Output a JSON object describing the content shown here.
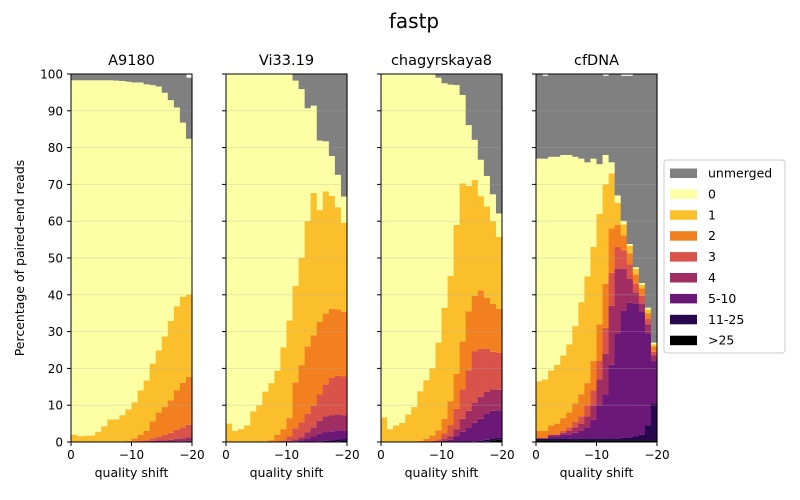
{
  "figure": {
    "title": "fastp",
    "ylabel": "Percentage of paired-end reads"
  },
  "colors": {
    "unmerged": "#808080",
    "0": "#fcffa4",
    "1": "#fbbf2c",
    "2": "#f2801f",
    "3": "#d9534a",
    "4": "#a12e62",
    "5-10": "#6b1879",
    "11-25": "#28074e",
    ">25": "#000000"
  },
  "legend": {
    "placement": "right",
    "entries": [
      "unmerged",
      "0",
      "1",
      "2",
      "3",
      "4",
      "5-10",
      "11-25",
      ">25"
    ]
  },
  "chart_data": [
    {
      "type": "area",
      "title": "A9180",
      "xlabel": "quality shift",
      "ylabel": "Percentage of paired-end reads",
      "xlim": [
        0,
        -20
      ],
      "ylim": [
        0,
        100
      ],
      "xticks": [
        "0",
        "−10",
        "−20"
      ],
      "yticks": [
        "0",
        "10",
        "20",
        "30",
        "40",
        "50",
        "60",
        "70",
        "80",
        "90",
        "100"
      ],
      "grid": true,
      "x": [
        0,
        -1,
        -2,
        -3,
        -4,
        -5,
        -6,
        -7,
        -8,
        -9,
        -10,
        -11,
        -12,
        -13,
        -14,
        -15,
        -16,
        -17,
        -18,
        -19,
        -20
      ],
      "series": [
        {
          "name": ">25",
          "values": [
            0,
            0,
            0,
            0,
            0,
            0,
            0,
            0,
            0,
            0,
            0,
            0,
            0,
            0,
            0,
            0,
            0,
            0,
            0,
            0,
            0
          ]
        },
        {
          "name": "11-25",
          "values": [
            0,
            0,
            0,
            0,
            0,
            0,
            0,
            0,
            0,
            0,
            0,
            0,
            0,
            0,
            0,
            0,
            0,
            0,
            0,
            0,
            0
          ]
        },
        {
          "name": "5-10",
          "values": [
            0,
            0,
            0,
            0,
            0,
            0,
            0,
            0,
            0,
            0,
            0,
            0,
            0,
            0,
            0,
            0,
            0,
            0.2,
            0.2,
            0.3,
            0.3
          ]
        },
        {
          "name": "4",
          "values": [
            0,
            0,
            0,
            0,
            0,
            0,
            0,
            0,
            0,
            0,
            0,
            0,
            0,
            0.3,
            0.4,
            0.5,
            0.6,
            0.7,
            0.8,
            1,
            1
          ]
        },
        {
          "name": "3",
          "values": [
            0,
            0,
            0,
            0,
            0,
            0,
            0,
            0,
            0,
            0,
            0.2,
            0.3,
            0.5,
            0.7,
            1,
            1.4,
            1.9,
            2.4,
            3,
            3.4,
            3.5
          ]
        },
        {
          "name": "2",
          "values": [
            0,
            0,
            0,
            0,
            0,
            0,
            0,
            0,
            0,
            0.3,
            0.8,
            1.7,
            2.5,
            4.6,
            6.6,
            7.6,
            8.8,
            10.7,
            12.1,
            13,
            13.5
          ]
        },
        {
          "name": "1",
          "values": [
            2,
            1.6,
            1.7,
            1.8,
            2.8,
            4.3,
            6.1,
            6.2,
            7.3,
            8.6,
            9.8,
            12,
            13.7,
            15.7,
            16.9,
            19.2,
            21.6,
            22.9,
            23.4,
            22.4,
            0
          ]
        },
        {
          "name": "0",
          "values": [
            96.3,
            96.7,
            96.6,
            96.5,
            95.5,
            94,
            92.2,
            92,
            90.8,
            89,
            86.9,
            83.7,
            80.5,
            75.7,
            71.7,
            66.2,
            60,
            54,
            47.3,
            42.3,
            0
          ]
        },
        {
          "name": "unmerged",
          "values": [
            1.7,
            1.7,
            1.7,
            1.7,
            1.7,
            1.7,
            1.7,
            1.8,
            1.9,
            2.1,
            2.3,
            2.3,
            2.8,
            3,
            3.4,
            5.1,
            7.1,
            9.1,
            13.2,
            16.6,
            0
          ]
        }
      ]
    },
    {
      "type": "area",
      "title": "Vi33.19",
      "xlabel": "quality shift",
      "xlim": [
        0,
        -20
      ],
      "ylim": [
        0,
        100
      ],
      "xticks": [
        "0",
        "−10",
        "−20"
      ],
      "grid": true,
      "x": [
        0,
        -1,
        -2,
        -3,
        -4,
        -5,
        -6,
        -7,
        -8,
        -9,
        -10,
        -11,
        -12,
        -13,
        -14,
        -15,
        -16,
        -17,
        -18,
        -19,
        -20
      ],
      "series": [
        {
          "name": ">25",
          "values": [
            0,
            0,
            0,
            0,
            0,
            0,
            0,
            0,
            0,
            0,
            0,
            0,
            0,
            0,
            0,
            0,
            0,
            0,
            0.2,
            0.3,
            0.3
          ]
        },
        {
          "name": "11-25",
          "values": [
            0,
            0,
            0,
            0,
            0,
            0,
            0,
            0,
            0,
            0,
            0,
            0,
            0,
            0,
            0,
            0.2,
            0.3,
            0.4,
            0.5,
            0.5,
            0.5
          ]
        },
        {
          "name": "5-10",
          "values": [
            0,
            0,
            0,
            0,
            0,
            0,
            0,
            0,
            0,
            0,
            0,
            0.2,
            0.5,
            1,
            1.5,
            2,
            2.4,
            2.5,
            2.5,
            2.3,
            2.2
          ]
        },
        {
          "name": "4",
          "values": [
            0,
            0,
            0,
            0,
            0,
            0,
            0,
            0,
            0,
            0,
            0.3,
            0.5,
            0.8,
            1.6,
            2.5,
            3.6,
            4.3,
            4.3,
            4.3,
            4.2,
            4
          ]
        },
        {
          "name": "3",
          "values": [
            0,
            0,
            0,
            0,
            0,
            0,
            0,
            0,
            0,
            0.5,
            1.2,
            3,
            4,
            5.1,
            5.8,
            7.1,
            8.6,
            10.2,
            10.5,
            10.5,
            10.5
          ]
        },
        {
          "name": "2",
          "values": [
            0,
            0,
            0,
            0,
            0,
            0,
            0.2,
            0.5,
            2,
            3,
            5,
            12.5,
            15.6,
            18.3,
            19.2,
            19.8,
            19.3,
            18.8,
            18,
            17.6,
            16.7
          ]
        },
        {
          "name": "1",
          "values": [
            5,
            3,
            3.5,
            4.5,
            8.3,
            10,
            13.5,
            15.5,
            17.4,
            22.2,
            26.5,
            26.2,
            29.2,
            34,
            38.7,
            30.3,
            33.2,
            30.7,
            27.8,
            24.2,
            25
          ]
        },
        {
          "name": "0",
          "values": [
            95,
            97,
            96.5,
            95.5,
            91.7,
            90,
            86.3,
            84,
            80.6,
            74.3,
            67,
            55.8,
            45.8,
            30.7,
            23.7,
            18.9,
            13.6,
            10.8,
            8.8,
            7.1,
            0
          ]
        },
        {
          "name": "unmerged",
          "values": [
            0,
            0,
            0,
            0,
            0,
            0,
            0,
            0,
            0,
            0,
            0,
            1.8,
            4.1,
            9.3,
            8.6,
            18.1,
            18.3,
            22.3,
            27.4,
            33.3,
            0
          ]
        }
      ]
    },
    {
      "type": "area",
      "title": "chagyrskaya8",
      "xlabel": "quality shift",
      "xlim": [
        0,
        -20
      ],
      "ylim": [
        0,
        100
      ],
      "xticks": [
        "0",
        "−10",
        "−20"
      ],
      "grid": true,
      "x": [
        0,
        -1,
        -2,
        -3,
        -4,
        -5,
        -6,
        -7,
        -8,
        -9,
        -10,
        -11,
        -12,
        -13,
        -14,
        -15,
        -16,
        -17,
        -18,
        -19,
        -20
      ],
      "series": [
        {
          "name": ">25",
          "values": [
            0,
            0,
            0,
            0,
            0,
            0,
            0,
            0,
            0,
            0,
            0,
            0,
            0,
            0,
            0,
            0,
            0,
            0.2,
            0.5,
            0.6,
            0.6
          ]
        },
        {
          "name": "11-25",
          "values": [
            0,
            0,
            0,
            0,
            0,
            0,
            0,
            0,
            0,
            0,
            0,
            0,
            0,
            0,
            0,
            0.2,
            0.3,
            0.4,
            0.5,
            0.5,
            0.5
          ]
        },
        {
          "name": "5-10",
          "values": [
            0,
            0,
            0,
            0,
            0,
            0,
            0,
            0,
            0,
            0,
            0.3,
            0.6,
            1.5,
            2.8,
            4,
            5,
            6,
            7,
            7.5,
            7.5,
            7.3
          ]
        },
        {
          "name": "4",
          "values": [
            0,
            0,
            0,
            0,
            0,
            0,
            0,
            0,
            0,
            0,
            0.5,
            1,
            2,
            3.5,
            4.5,
            5.5,
            6,
            6,
            5.8,
            5.6,
            5.3
          ]
        },
        {
          "name": "3",
          "values": [
            0,
            0,
            0,
            0,
            0,
            0,
            0,
            0,
            0.3,
            0.7,
            1.5,
            3,
            5.5,
            8,
            11,
            14,
            13,
            11.7,
            10.2,
            10,
            9
          ]
        },
        {
          "name": "2",
          "values": [
            0,
            0,
            0,
            0,
            0,
            0,
            0.3,
            0.9,
            1.5,
            2.5,
            4,
            6.5,
            9.5,
            13,
            16,
            15,
            15.9,
            13.9,
            13,
            12,
            11
          ]
        },
        {
          "name": "1",
          "values": [
            6.7,
            3.5,
            4.5,
            5.2,
            7.5,
            9.5,
            13.5,
            15.9,
            18.2,
            23.8,
            30.2,
            34,
            40.5,
            43,
            34.1,
            31.5,
            25.6,
            24.8,
            22.5,
            19.5,
            0
          ]
        },
        {
          "name": "0",
          "values": [
            93.3,
            96.5,
            95.5,
            94.8,
            92.5,
            90.5,
            86.2,
            83.2,
            80,
            72,
            61,
            52,
            38,
            24,
            16.5,
            10.9,
            9.9,
            8.3,
            7.3,
            6.4,
            0
          ]
        },
        {
          "name": "unmerged",
          "values": [
            0,
            0,
            0,
            0,
            0,
            0,
            0,
            0,
            0,
            1,
            2.5,
            2.9,
            3,
            5.7,
            13.9,
            17.9,
            23.3,
            27.7,
            32.7,
            37.9,
            0
          ]
        }
      ]
    },
    {
      "type": "area",
      "title": "cfDNA",
      "xlabel": "quality shift",
      "xlim": [
        0,
        -20
      ],
      "ylim": [
        0,
        100
      ],
      "xticks": [
        "0",
        "−10",
        "−20"
      ],
      "grid": true,
      "x": [
        0,
        -1,
        -2,
        -3,
        -4,
        -5,
        -6,
        -7,
        -8,
        -9,
        -10,
        -11,
        -12,
        -13,
        -14,
        -15,
        -16,
        -17,
        -18,
        -19,
        -20
      ],
      "series": [
        {
          "name": ">25",
          "values": [
            0.5,
            0.5,
            0.5,
            0.5,
            0.5,
            0.5,
            0.5,
            0.5,
            0.5,
            0.5,
            0.5,
            0.5,
            0.5,
            0.5,
            0.5,
            0.5,
            0.5,
            0.5,
            0.5,
            0.5,
            0.5
          ]
        },
        {
          "name": "11-25",
          "values": [
            0.5,
            0.5,
            0.5,
            0.5,
            0.5,
            0.5,
            0.5,
            0.5,
            0.5,
            0.5,
            0.5,
            0.5,
            0.5,
            0.5,
            0.6,
            0.8,
            1,
            1.5,
            4,
            10,
            10
          ]
        },
        {
          "name": "5-10",
          "values": [
            0,
            0,
            0.5,
            0.5,
            1,
            1,
            1.5,
            2,
            3,
            5,
            9,
            12,
            20,
            28.5,
            34.5,
            36.5,
            36,
            33.5,
            25,
            11.5,
            0
          ]
        },
        {
          "name": "4",
          "values": [
            0,
            0,
            0.5,
            0.5,
            0.5,
            1,
            1.5,
            2,
            3,
            4,
            7,
            11,
            16,
            17.5,
            11.5,
            6.5,
            3,
            2.2,
            2.5,
            1.5,
            0
          ]
        },
        {
          "name": "3",
          "values": [
            0,
            0,
            0,
            0,
            0.5,
            1,
            1.5,
            2,
            3,
            4,
            5,
            7,
            9,
            6,
            5,
            4,
            2.5,
            2,
            1.5,
            1,
            0
          ]
        },
        {
          "name": "2",
          "values": [
            2,
            2,
            2.5,
            3,
            3.5,
            4,
            5,
            6,
            6,
            8,
            10,
            12,
            12,
            6,
            4,
            3,
            2.5,
            2,
            1.5,
            1.5,
            0
          ]
        },
        {
          "name": "1",
          "values": [
            13.5,
            14,
            15,
            16,
            17,
            18.5,
            21,
            25,
            29,
            31,
            30,
            27,
            15,
            6,
            3,
            2,
            1.5,
            1,
            1,
            0.5,
            0
          ]
        },
        {
          "name": "0",
          "values": [
            60.5,
            60,
            58,
            56.5,
            54.5,
            51.5,
            46,
            39,
            31,
            24,
            13.5,
            8,
            3,
            2,
            1,
            0.5,
            0.5,
            0.5,
            0.5,
            0.5,
            0
          ]
        },
        {
          "name": "unmerged",
          "values": [
            23,
            22.5,
            22.5,
            22.5,
            22,
            22,
            22.5,
            23,
            24,
            23,
            24.5,
            21.5,
            24,
            33,
            39.4,
            45.7,
            52.5,
            56.8,
            63.5,
            73,
            0
          ]
        }
      ]
    }
  ]
}
